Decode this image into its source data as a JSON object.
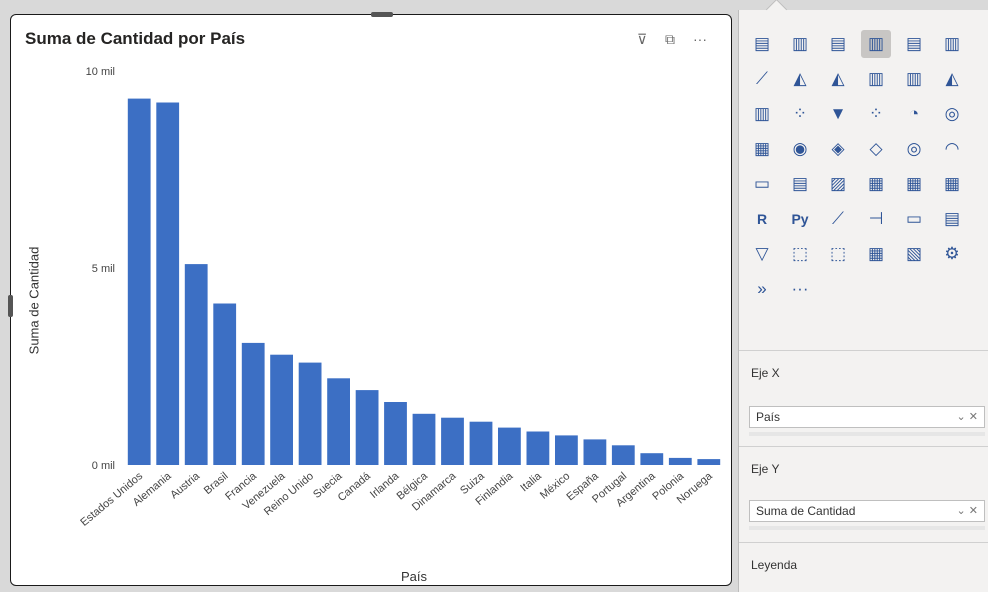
{
  "visual": {
    "title": "Suma de Cantidad por País",
    "filter_icon": "filter-icon",
    "focus_icon": "focus-mode-icon",
    "more_label": "···"
  },
  "chart_data": {
    "type": "bar",
    "title": "Suma de Cantidad por País",
    "xlabel": "País",
    "ylabel": "Suma de Cantidad",
    "ylim": [
      0,
      10000
    ],
    "yticks": [
      {
        "value": 0,
        "label": "0 mil"
      },
      {
        "value": 5000,
        "label": "5 mil"
      },
      {
        "value": 10000,
        "label": "10 mil"
      }
    ],
    "grid": false,
    "color": "#3c6fc4",
    "categories": [
      "Estados Unidos",
      "Alemania",
      "Austria",
      "Brasil",
      "Francia",
      "Venezuela",
      "Reino Unido",
      "Suecia",
      "Canadá",
      "Irlanda",
      "Bélgica",
      "Dinamarca",
      "Suiza",
      "Finlandia",
      "Italia",
      "México",
      "España",
      "Portugal",
      "Argentina",
      "Polonia",
      "Noruega"
    ],
    "values": [
      9300,
      9200,
      5100,
      4100,
      3100,
      2800,
      2600,
      2200,
      1900,
      1600,
      1300,
      1200,
      1100,
      950,
      850,
      750,
      650,
      500,
      300,
      180,
      150
    ]
  },
  "pane": {
    "visual_icons": [
      "stacked-bar-icon",
      "stacked-column-icon",
      "clustered-bar-icon",
      "clustered-column-icon",
      "100-stacked-bar-icon",
      "100-stacked-column-icon",
      "line-chart-icon",
      "area-chart-icon",
      "stacked-area-icon",
      "line-stacked-column-icon",
      "line-clustered-column-icon",
      "ribbon-chart-icon",
      "waterfall-icon",
      "scatter-icon",
      "funnel-icon",
      "scatter-chart-icon",
      "pie-chart-icon",
      "donut-chart-icon",
      "treemap-icon",
      "map-icon",
      "filled-map-icon",
      "shape-map-icon",
      "azure-map-icon",
      "gauge-icon",
      "card-icon",
      "multi-row-card-icon",
      "kpi-icon",
      "slicer-icon",
      "table-icon",
      "matrix-icon",
      "r-visual-icon",
      "python-visual-icon",
      "key-influencers-icon",
      "decomposition-tree-icon",
      "qa-icon",
      "smart-narrative-icon",
      "paginated-report-icon",
      "power-apps-icon",
      "power-automate-icon",
      "metrics-icon",
      "arcgis-icon",
      "custom-visual-icon",
      "get-more-visuals-icon",
      "more-options-icon"
    ],
    "visual_glyphs": [
      "▤",
      "▥",
      "▤",
      "▥",
      "▤",
      "▥",
      "⟋",
      "◭",
      "◭",
      "▥",
      "▥",
      "◭",
      "▥",
      "⁘",
      "▼",
      "⁘",
      "◔",
      "◎",
      "▦",
      "◉",
      "◈",
      "◇",
      "◎",
      "◠",
      "▭",
      "▤",
      "▨",
      "▦",
      "▦",
      "▦",
      "R",
      "Py",
      "⟋",
      "⊣",
      "▭",
      "▤",
      "▽",
      "⬚",
      "⬚",
      "▦",
      "▧",
      "⚙",
      "»",
      "···"
    ],
    "selected_index": 3,
    "axis_x_label": "Eje X",
    "axis_x_field": "País",
    "axis_y_label": "Eje Y",
    "axis_y_field": "Suma de Cantidad",
    "legend_label": "Leyenda",
    "well_controls": "⌄ ✕"
  }
}
